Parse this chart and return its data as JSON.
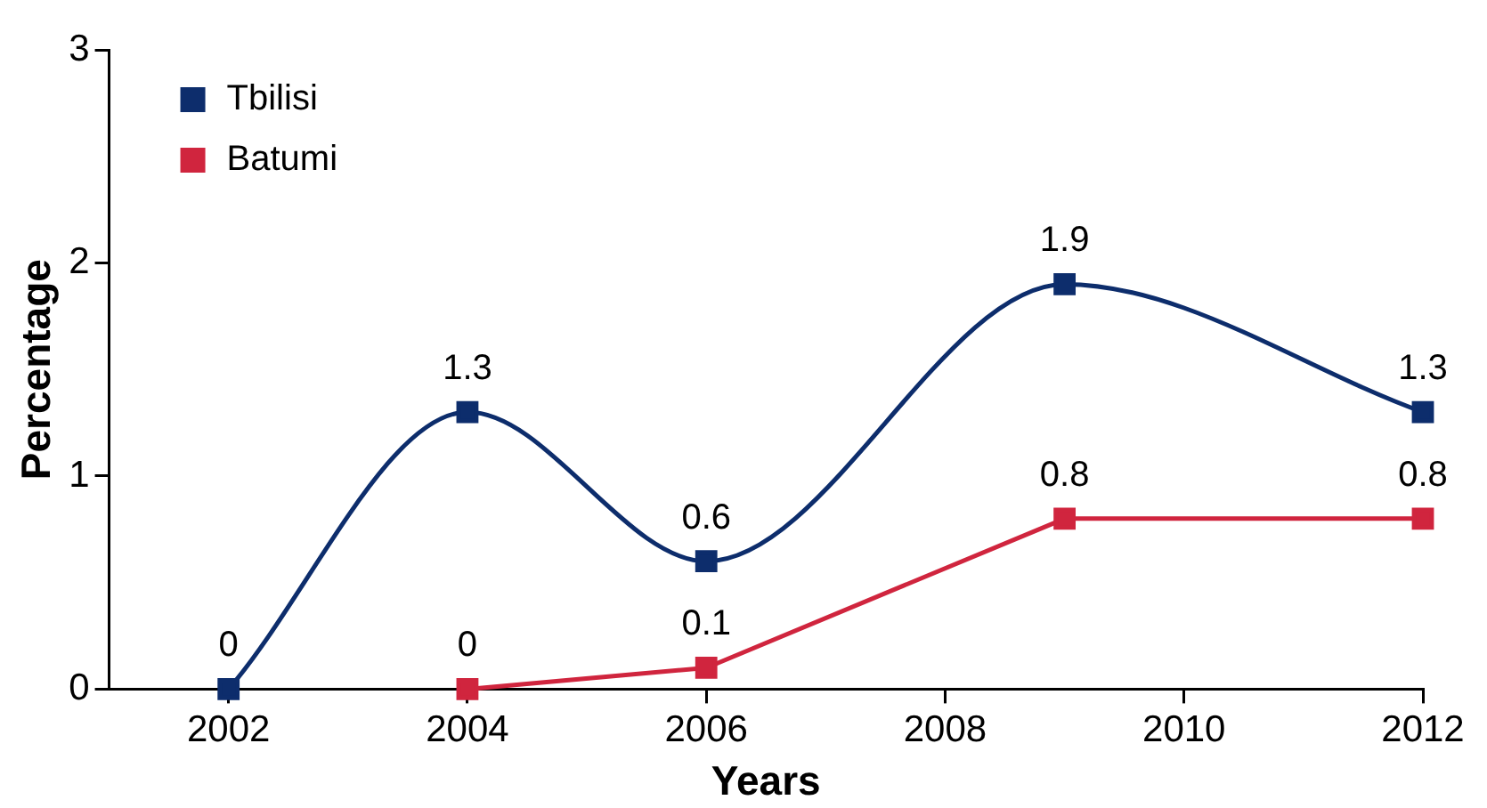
{
  "chart_data": {
    "type": "line",
    "xlabel": "Years",
    "ylabel": "Percentage",
    "xlim": [
      2001,
      2012
    ],
    "xticks": [
      2002,
      2004,
      2006,
      2008,
      2010,
      2012
    ],
    "ylim": [
      0,
      3
    ],
    "yticks": [
      0,
      1,
      2,
      3
    ],
    "grid": false,
    "legend": "top left",
    "marker": "square",
    "data_labels": true,
    "series": [
      {
        "name": "Tbilisi",
        "color": "#0d2d6c",
        "x": [
          2002,
          2004,
          2006,
          2009,
          2012
        ],
        "values": [
          0,
          1.3,
          0.6,
          1.9,
          1.3
        ]
      },
      {
        "name": "Batumi",
        "color": "#d0253e",
        "x": [
          2004,
          2006,
          2009,
          2012
        ],
        "values": [
          0,
          0.1,
          0.8,
          0.8
        ]
      }
    ]
  }
}
